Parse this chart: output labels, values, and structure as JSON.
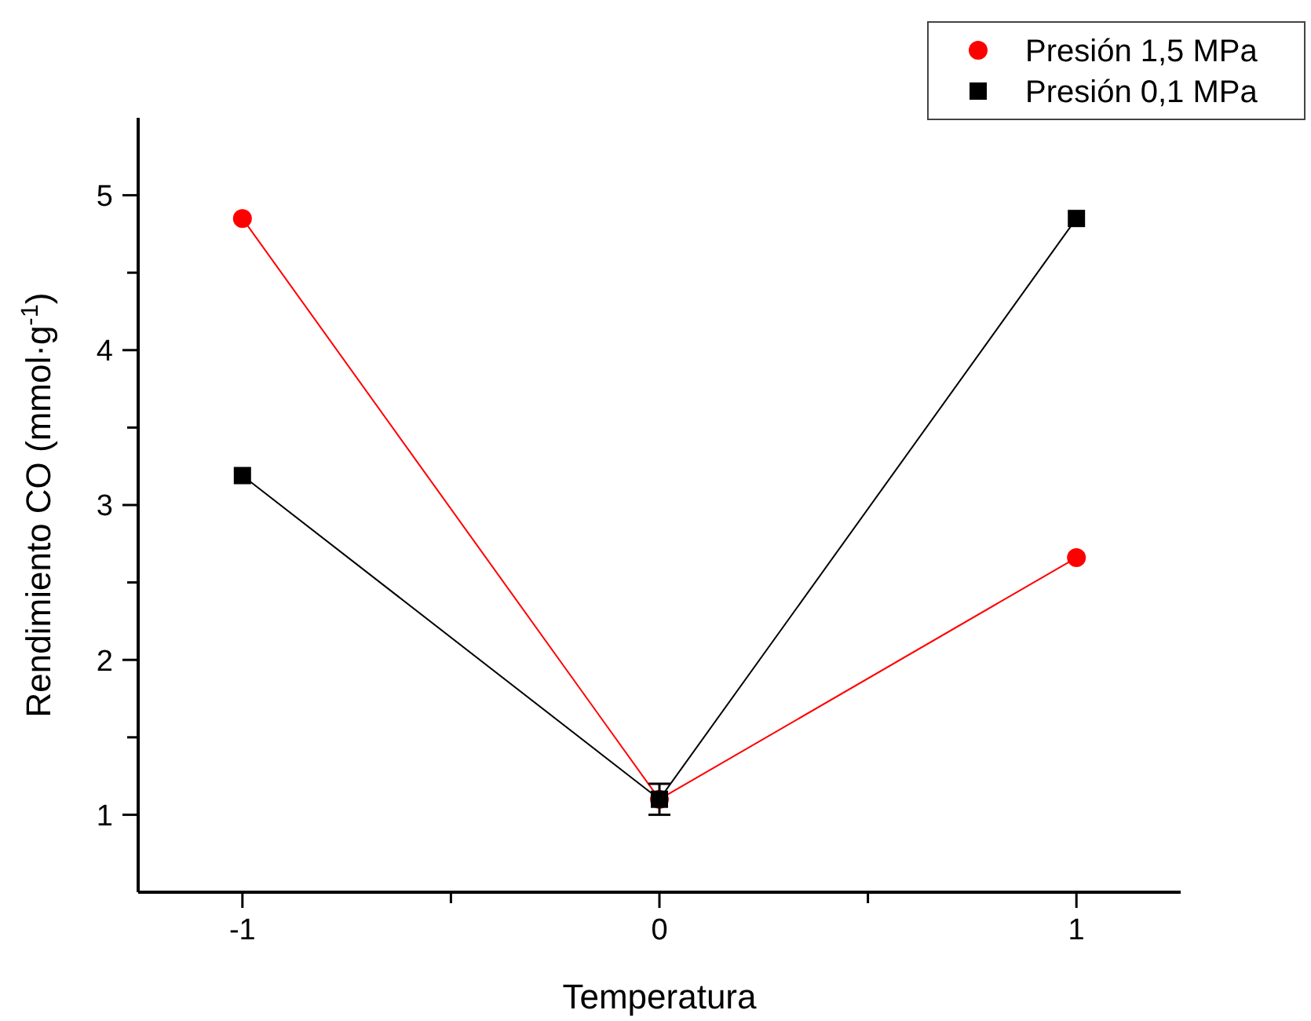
{
  "chart_data": {
    "type": "line",
    "xlabel": "Temperatura",
    "ylabel": "Rendimiento CO (mmol·g$^{-1}$)",
    "x": [
      -1,
      0,
      1
    ],
    "xlim": [
      -1.25,
      1.25
    ],
    "xticks": [
      {
        "value": -1,
        "label": "-1"
      },
      {
        "value": -0.5,
        "label": null
      },
      {
        "value": 0,
        "label": "0"
      },
      {
        "value": 0.5,
        "label": null
      },
      {
        "value": 1,
        "label": "1"
      }
    ],
    "ylim": [
      0.5,
      5.5
    ],
    "yticks": [
      {
        "value": 1,
        "label": "1"
      },
      {
        "value": 1.5,
        "label": null
      },
      {
        "value": 2,
        "label": "2"
      },
      {
        "value": 2.5,
        "label": null
      },
      {
        "value": 3,
        "label": "3"
      },
      {
        "value": 3.5,
        "label": null
      },
      {
        "value": 4,
        "label": "4"
      },
      {
        "value": 4.5,
        "label": null
      },
      {
        "value": 5,
        "label": "5"
      }
    ],
    "series": [
      {
        "name": "Presión 1,5 MPa",
        "color": "#ff0000",
        "marker": "circle",
        "values": [
          4.85,
          1.1,
          2.66
        ]
      },
      {
        "name": "Presión 0,1 MPa",
        "color": "#000000",
        "marker": "square",
        "values": [
          3.19,
          1.1,
          4.85
        ],
        "errors": [
          null,
          0.1,
          null
        ]
      }
    ],
    "legend": "top right",
    "grid": false,
    "line_style": "solid"
  }
}
